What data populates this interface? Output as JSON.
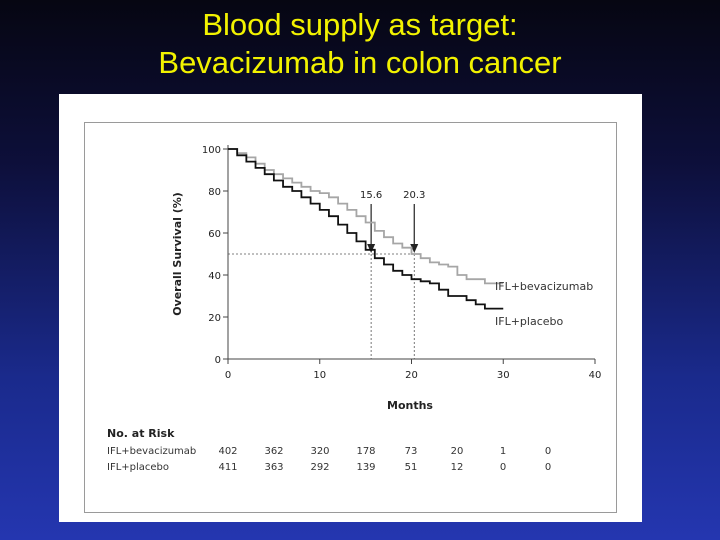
{
  "slide": {
    "title_line1": "Blood supply as target:",
    "title_line2": "Bevacizumab in colon cancer"
  },
  "colors": {
    "background_top": "#060612",
    "background_bottom": "#2436b0",
    "title": "#f2f200",
    "bevacizumab_line": "#a6a6a6",
    "placebo_line": "#111111"
  },
  "chart_data": {
    "type": "line",
    "title": "",
    "xlabel": "Months",
    "ylabel": "Overall Survival (%)",
    "xlim": [
      0,
      40
    ],
    "ylim": [
      0,
      100
    ],
    "x_ticks": [
      "0",
      "10",
      "20",
      "30",
      "40"
    ],
    "y_ticks": [
      "0",
      "20",
      "40",
      "60",
      "80",
      "100"
    ],
    "grid": false,
    "series": [
      {
        "name": "IFL+bevacizumab",
        "color": "#a6a6a6",
        "x": [
          0,
          1,
          2,
          3,
          4,
          5,
          6,
          7,
          8,
          9,
          10,
          11,
          12,
          13,
          14,
          15,
          16,
          17,
          18,
          19,
          20,
          21,
          22,
          23,
          24,
          25,
          26,
          27,
          28,
          29,
          30
        ],
        "y": [
          100,
          98,
          96,
          93,
          90,
          88,
          86,
          84,
          82,
          80,
          79,
          77,
          74,
          71,
          68,
          65,
          61,
          58,
          55,
          53,
          50,
          48,
          46,
          45,
          44,
          40,
          38,
          38,
          36,
          36,
          36
        ]
      },
      {
        "name": "IFL+placebo",
        "color": "#111111",
        "x": [
          0,
          1,
          2,
          3,
          4,
          5,
          6,
          7,
          8,
          9,
          10,
          11,
          12,
          13,
          14,
          15,
          16,
          17,
          18,
          19,
          20,
          21,
          22,
          23,
          24,
          25,
          26,
          27,
          28,
          29,
          30
        ],
        "y": [
          100,
          97,
          94,
          91,
          88,
          85,
          82,
          80,
          77,
          74,
          71,
          68,
          64,
          60,
          56,
          52,
          48,
          45,
          42,
          40,
          38,
          37,
          36,
          33,
          30,
          30,
          28,
          26,
          24,
          24,
          24
        ]
      }
    ],
    "reference_lines": {
      "survival_level": 50,
      "medians": [
        15.6,
        20.3
      ]
    },
    "annotations": [
      "15.6",
      "20.3"
    ],
    "legend": [
      {
        "label": "IFL+bevacizumab",
        "placement": "right of line end"
      },
      {
        "label": "IFL+placebo",
        "placement": "right of line end"
      }
    ]
  },
  "risk_table": {
    "heading": "No. at Risk",
    "rows": [
      {
        "label": "IFL+bevacizumab",
        "values": [
          "402",
          "362",
          "320",
          "178",
          "73",
          "20",
          "1",
          "0"
        ]
      },
      {
        "label": "IFL+placebo",
        "values": [
          "411",
          "363",
          "292",
          "139",
          "51",
          "12",
          "0",
          "0"
        ]
      }
    ]
  }
}
